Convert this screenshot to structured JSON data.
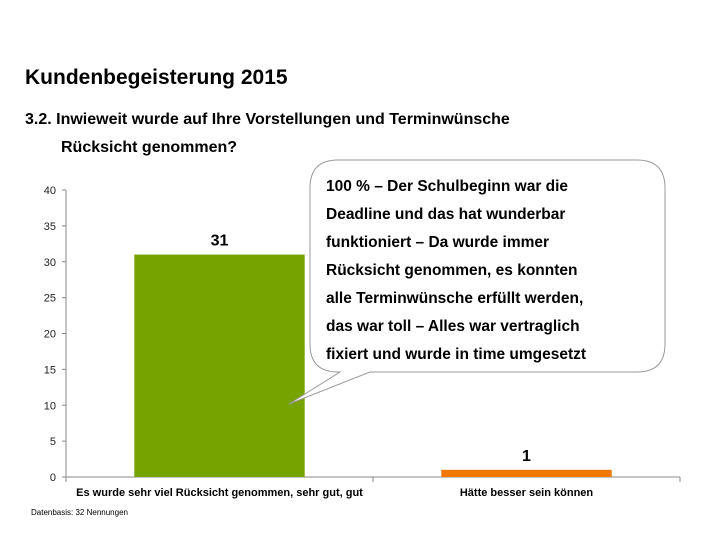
{
  "slide": {
    "title": "Kundenbegeisterung 2015",
    "question_line1": "3.2. Inwieweit wurde auf Ihre Vorstellungen und Terminwünsche",
    "question_line2": "Rücksicht genommen?",
    "footnote": "Datenbasis: 32 Nennungen"
  },
  "callout": {
    "lines": [
      "100 %  – Der Schulbeginn war die",
      "Deadline und das hat wunderbar",
      "funktioniert – Da wurde immer",
      "Rücksicht genommen, es konnten",
      "alle Terminwünsche erfüllt werden,",
      "das war toll – Alles war vertraglich",
      "fixiert und wurde in time umgesetzt"
    ]
  },
  "chart_data": {
    "type": "bar",
    "title": "",
    "xlabel": "",
    "ylabel": "",
    "categories": [
      "Es wurde sehr viel Rücksicht genommen, sehr gut, gut",
      "Hätte besser sein können"
    ],
    "values": [
      31,
      1
    ],
    "data_labels": [
      "31",
      "1"
    ],
    "colors": [
      "#77a300",
      "#f07800"
    ],
    "ylim": [
      0,
      40
    ],
    "yticks": [
      0,
      5,
      10,
      15,
      20,
      25,
      30,
      35,
      40
    ],
    "grid": false,
    "legend": "none"
  }
}
